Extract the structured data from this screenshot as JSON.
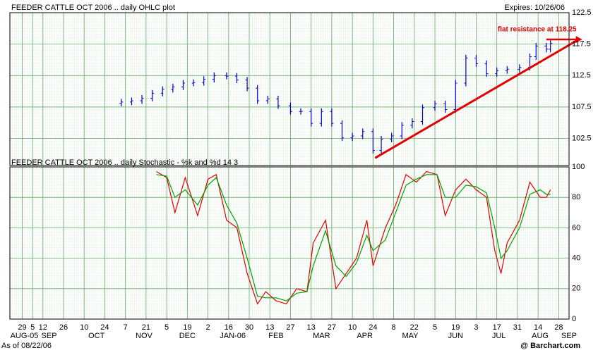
{
  "chart_data": [
    {
      "type": "ohlc",
      "title": "FEEDER CATTLE OCT 2006 .. daily OHLC plot",
      "subtitle": "Expires: 10/26/06",
      "color": "#0000cc",
      "grid": true,
      "x": [
        48,
        53,
        58,
        63,
        68,
        73,
        78,
        83,
        88,
        93,
        99,
        104,
        109,
        114,
        119,
        124,
        130,
        135,
        140,
        145,
        150,
        155,
        160,
        165,
        170,
        174,
        179,
        184,
        189,
        194,
        200,
        205,
        210,
        215,
        220,
        225,
        230,
        235,
        241,
        246,
        249,
        254,
        256
      ],
      "open": [
        108.1,
        108.3,
        108.5,
        108.9,
        109.7,
        110.3,
        110.7,
        111.3,
        111.4,
        111.9,
        112.5,
        112.4,
        111.8,
        110.5,
        108.5,
        108.8,
        107.7,
        106.8,
        106.8,
        104.9,
        106.8,
        104.9,
        102.6,
        102.9,
        103.6,
        100.6,
        102.4,
        102.9,
        104.6,
        105.2,
        107.4,
        108.0,
        107.1,
        111.3,
        115.3,
        114.4,
        112.8,
        113.3,
        113.5,
        113.8,
        115.5,
        117.2,
        116.7
      ],
      "high": [
        108.8,
        109.0,
        109.4,
        110.2,
        110.8,
        111.2,
        111.8,
        111.9,
        112.4,
        113.0,
        113.0,
        112.9,
        112.3,
        111.0,
        109.3,
        109.3,
        108.2,
        107.3,
        107.3,
        107.3,
        107.3,
        105.4,
        103.4,
        104.1,
        104.1,
        102.9,
        103.4,
        105.1,
        105.7,
        107.9,
        108.5,
        108.5,
        111.8,
        115.8,
        115.8,
        114.9,
        113.8,
        114.0,
        114.3,
        116.0,
        117.7,
        117.7,
        118.1
      ],
      "low": [
        107.6,
        107.8,
        108.0,
        108.4,
        109.2,
        109.8,
        110.2,
        110.8,
        110.9,
        111.4,
        111.9,
        111.3,
        110.0,
        108.0,
        108.0,
        107.2,
        106.3,
        106.3,
        104.4,
        104.4,
        104.4,
        102.1,
        102.1,
        102.4,
        100.1,
        100.1,
        101.9,
        102.4,
        104.1,
        104.7,
        106.9,
        106.6,
        106.6,
        110.8,
        113.9,
        112.3,
        112.3,
        112.8,
        113.0,
        113.3,
        115.0,
        116.2,
        116.2
      ],
      "close": [
        108.3,
        108.5,
        108.9,
        109.7,
        110.3,
        110.7,
        111.3,
        111.4,
        111.9,
        112.5,
        112.4,
        111.8,
        110.5,
        108.5,
        108.8,
        107.7,
        106.8,
        106.8,
        104.9,
        106.8,
        104.9,
        102.6,
        102.9,
        103.6,
        100.6,
        102.4,
        102.9,
        104.6,
        105.2,
        107.4,
        108.0,
        107.1,
        111.3,
        115.3,
        114.4,
        112.8,
        113.3,
        113.5,
        113.8,
        115.5,
        117.2,
        116.7,
        117.6
      ],
      "xlim": [
        -6,
        265
      ],
      "ylim": [
        98.2,
        122.5
      ],
      "yticks": [
        102.5,
        107.5,
        112.5,
        117.5,
        122.5
      ],
      "trendline": {
        "x": [
          171,
          270
        ],
        "y": [
          99.4,
          118.3
        ],
        "color": "#e00000"
      },
      "annotation": {
        "text": "flat resistance at 118.25",
        "value": 118.25,
        "x": [
          254,
          270
        ],
        "color": "#e00000"
      }
    },
    {
      "type": "line",
      "title": "FEEDER CATTLE OCT 2006 .. daily Stochastic - %k and %d   14   3",
      "grid": true,
      "x": [
        65,
        70,
        74,
        79,
        85,
        90,
        94,
        99,
        104,
        109,
        114,
        118,
        123,
        128,
        133,
        138,
        141,
        147,
        152,
        157,
        162,
        167,
        170,
        176,
        181,
        186,
        191,
        196,
        201,
        205,
        210,
        215,
        220,
        225,
        229,
        232,
        235,
        241,
        246,
        251,
        254,
        256
      ],
      "series": [
        {
          "color": "#e00000",
          "values": [
            97,
            93,
            70,
            93,
            68,
            92,
            95,
            65,
            60,
            30,
            10,
            18,
            12,
            10,
            20,
            18,
            50,
            65,
            20,
            30,
            40,
            65,
            35,
            60,
            75,
            95,
            90,
            97,
            95,
            68,
            85,
            92,
            85,
            80,
            45,
            30,
            50,
            65,
            90,
            80,
            80,
            85
          ]
        },
        {
          "color": "#00a000",
          "values": [
            95,
            94,
            80,
            85,
            75,
            88,
            93,
            75,
            63,
            40,
            15,
            14,
            14,
            12,
            17,
            18,
            35,
            58,
            35,
            28,
            37,
            55,
            45,
            52,
            70,
            88,
            92,
            95,
            95,
            80,
            80,
            88,
            87,
            83,
            60,
            40,
            45,
            60,
            82,
            85,
            82,
            82
          ]
        }
      ],
      "xlim": [
        -6,
        265
      ],
      "ylim": [
        0,
        100
      ],
      "yticks": [
        0,
        20,
        40,
        60,
        80,
        100
      ],
      "xticks": [
        {
          "value": 0,
          "label": "29"
        },
        {
          "value": 5,
          "label": "5"
        },
        {
          "value": 10,
          "label": "12"
        },
        {
          "value": 20,
          "label": "26"
        },
        {
          "value": 30,
          "label": "10"
        },
        {
          "value": 40,
          "label": "24"
        },
        {
          "value": 50,
          "label": "7"
        },
        {
          "value": 60,
          "label": "21"
        },
        {
          "value": 70,
          "label": "5"
        },
        {
          "value": 80,
          "label": "19"
        },
        {
          "value": 90,
          "label": "2"
        },
        {
          "value": 100,
          "label": "16"
        },
        {
          "value": 110,
          "label": "30"
        },
        {
          "value": 120,
          "label": "13"
        },
        {
          "value": 130,
          "label": "27"
        },
        {
          "value": 140,
          "label": "13"
        },
        {
          "value": 150,
          "label": "27"
        },
        {
          "value": 160,
          "label": "10"
        },
        {
          "value": 170,
          "label": "24"
        },
        {
          "value": 180,
          "label": "8"
        },
        {
          "value": 190,
          "label": "22"
        },
        {
          "value": 200,
          "label": "5"
        },
        {
          "value": 210,
          "label": "19"
        },
        {
          "value": 220,
          "label": "3"
        },
        {
          "value": 230,
          "label": "17"
        },
        {
          "value": 240,
          "label": "31"
        },
        {
          "value": 250,
          "label": "14"
        },
        {
          "value": 260,
          "label": "28"
        }
      ],
      "month_ticks": [
        {
          "value": 1,
          "label": "AUG-05"
        },
        {
          "value": 13,
          "label": "SEP"
        },
        {
          "value": 36,
          "label": "OCT"
        },
        {
          "value": 59,
          "label": "NOV"
        },
        {
          "value": 80,
          "label": "DEC"
        },
        {
          "value": 102,
          "label": "JAN-06"
        },
        {
          "value": 123,
          "label": "FEB"
        },
        {
          "value": 145,
          "label": "MAR"
        },
        {
          "value": 166,
          "label": "APR"
        },
        {
          "value": 188,
          "label": "MAY"
        },
        {
          "value": 210,
          "label": "JUN"
        },
        {
          "value": 231,
          "label": "JUL"
        },
        {
          "value": 251,
          "label": "AUG"
        },
        {
          "value": 265,
          "label": "SEP"
        }
      ],
      "footnote": "As of 08/22/06",
      "credit": "@ Barchart.com"
    }
  ]
}
